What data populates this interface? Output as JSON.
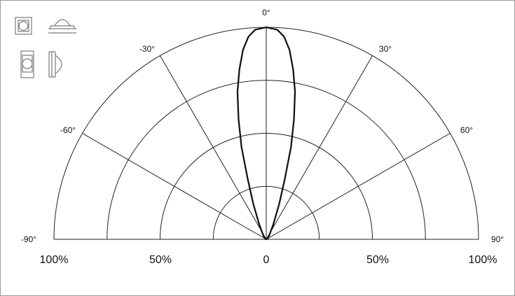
{
  "icons": [
    "led-front-square-icon",
    "led-dome-side-icon",
    "led-front-vertical-icon",
    "led-side-vertical-icon"
  ],
  "chart_data": {
    "type": "polar",
    "angle_range": [
      -90,
      90
    ],
    "angle_labels": [
      "-90°",
      "-60°",
      "-30°",
      "0°",
      "30°",
      "60°",
      "90°"
    ],
    "rings_percent": [
      25,
      50,
      75,
      100
    ],
    "scale_labels": [
      "100%",
      "50%",
      "0",
      "50%",
      "100%"
    ],
    "series": [
      {
        "points": [
          {
            "angle": -90,
            "value": 0
          },
          {
            "angle": -80,
            "value": 0
          },
          {
            "angle": -70,
            "value": 0
          },
          {
            "angle": -60,
            "value": 0.5
          },
          {
            "angle": -50,
            "value": 1
          },
          {
            "angle": -40,
            "value": 2
          },
          {
            "angle": -30,
            "value": 4
          },
          {
            "angle": -25,
            "value": 8
          },
          {
            "angle": -20,
            "value": 18
          },
          {
            "angle": -17,
            "value": 30
          },
          {
            "angle": -15,
            "value": 45
          },
          {
            "angle": -13,
            "value": 58
          },
          {
            "angle": -11,
            "value": 71
          },
          {
            "angle": -9,
            "value": 81
          },
          {
            "angle": -7,
            "value": 90
          },
          {
            "angle": -5,
            "value": 96
          },
          {
            "angle": -3,
            "value": 99
          },
          {
            "angle": 0,
            "value": 100
          },
          {
            "angle": 3,
            "value": 99
          },
          {
            "angle": 5,
            "value": 96
          },
          {
            "angle": 7,
            "value": 90
          },
          {
            "angle": 9,
            "value": 81
          },
          {
            "angle": 11,
            "value": 71
          },
          {
            "angle": 13,
            "value": 58
          },
          {
            "angle": 15,
            "value": 45
          },
          {
            "angle": 17,
            "value": 30
          },
          {
            "angle": 20,
            "value": 18
          },
          {
            "angle": 25,
            "value": 8
          },
          {
            "angle": 30,
            "value": 4
          },
          {
            "angle": 40,
            "value": 2
          },
          {
            "angle": 50,
            "value": 1
          },
          {
            "angle": 60,
            "value": 0.5
          },
          {
            "angle": 70,
            "value": 0
          },
          {
            "angle": 80,
            "value": 0
          },
          {
            "angle": 90,
            "value": 0
          }
        ]
      }
    ]
  }
}
